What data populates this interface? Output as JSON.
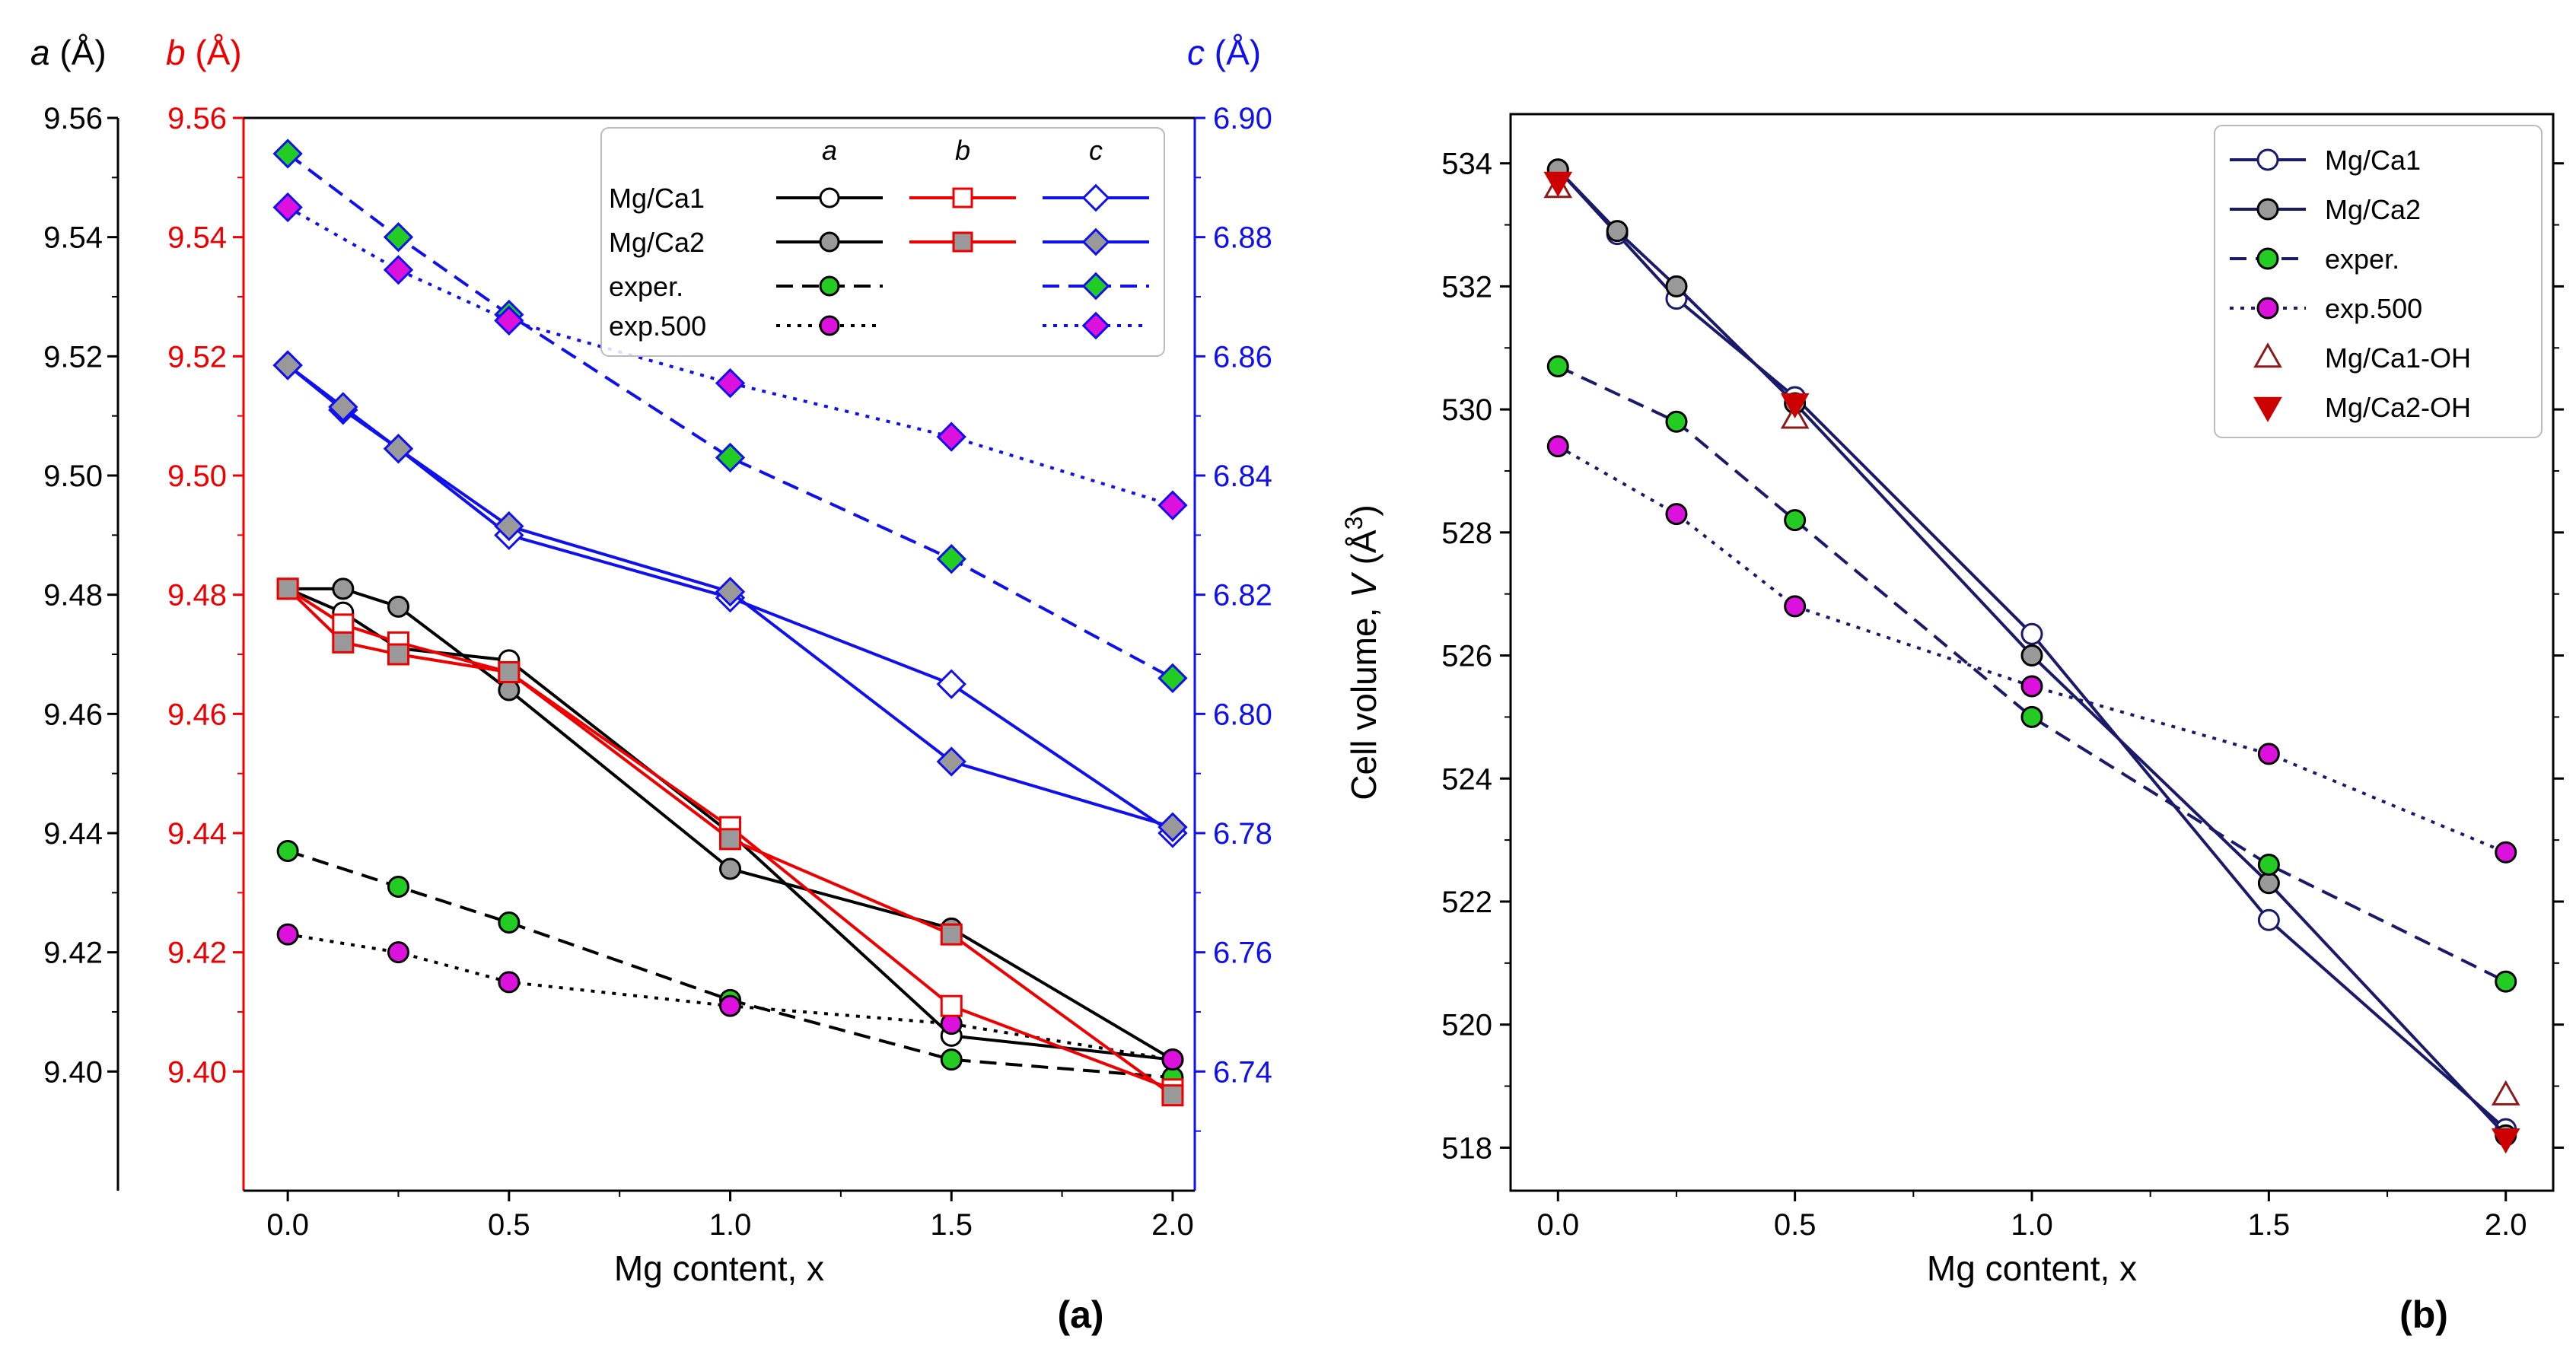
{
  "colors": {
    "a": "#000000",
    "b": "#ee0000",
    "c": "#1010ee",
    "v": "#1a1a6a",
    "green": "#22cc22",
    "magenta": "#dd11dd",
    "gray": "#999999",
    "red": "#cc0000",
    "darkred": "#8b1a1a"
  },
  "chart_data": [
    {
      "type": "line",
      "panel_label": "(a)",
      "xlabel": "Mg content, x",
      "xlim": [
        -0.1,
        2.05
      ],
      "xticks": [
        "0.0",
        "0.5",
        "1.0",
        "1.5",
        "2.0"
      ],
      "axis_titles": {
        "a": {
          "sym": "a",
          "unit": "(Å)"
        },
        "b": {
          "sym": "b",
          "unit": "(Å)"
        },
        "c": {
          "sym": "c",
          "unit": "(Å)"
        }
      },
      "left_axis": {
        "ylim": [
          9.38,
          9.56
        ],
        "ticks": [
          "9.40",
          "9.42",
          "9.44",
          "9.46",
          "9.48",
          "9.50",
          "9.52",
          "9.54",
          "9.56"
        ]
      },
      "right_axis": {
        "ylim": [
          6.72,
          6.9
        ],
        "ticks": [
          "6.74",
          "6.76",
          "6.78",
          "6.80",
          "6.82",
          "6.84",
          "6.86",
          "6.88",
          "6.90"
        ]
      },
      "legend": {
        "placement": "top-right",
        "col_headers": [
          "a",
          "b",
          "c"
        ],
        "rows": [
          "Mg/Ca1",
          "Mg/Ca2",
          "exper.",
          "exp.500"
        ]
      },
      "series": [
        {
          "name": "Mg/Ca1 a",
          "axis": "left",
          "color": "a",
          "dash": "solid",
          "marker": "circle",
          "fill": "#ffffff",
          "x": [
            0,
            0.125,
            0.25,
            0.5,
            1.0,
            1.5,
            2.0
          ],
          "y": [
            9.481,
            9.477,
            9.471,
            9.469,
            9.44,
            9.406,
            9.402
          ]
        },
        {
          "name": "Mg/Ca2 a",
          "axis": "left",
          "color": "a",
          "dash": "solid",
          "marker": "circle",
          "fill": "gray",
          "x": [
            0,
            0.125,
            0.25,
            0.5,
            1.0,
            1.5,
            2.0
          ],
          "y": [
            9.481,
            9.481,
            9.478,
            9.464,
            9.434,
            9.424,
            9.402
          ]
        },
        {
          "name": "exper. a",
          "axis": "left",
          "color": "a",
          "dash": "dashed",
          "marker": "circle",
          "fill": "green",
          "x": [
            0,
            0.25,
            0.5,
            1.0,
            1.5,
            2.0
          ],
          "y": [
            9.437,
            9.431,
            9.425,
            9.412,
            9.402,
            9.399
          ]
        },
        {
          "name": "exp.500 a",
          "axis": "left",
          "color": "a",
          "dash": "dotted",
          "marker": "circle",
          "fill": "magenta",
          "x": [
            0,
            0.25,
            0.5,
            1.0,
            1.5,
            2.0
          ],
          "y": [
            9.423,
            9.42,
            9.415,
            9.411,
            9.408,
            9.402
          ]
        },
        {
          "name": "Mg/Ca1 b",
          "axis": "left",
          "color": "b",
          "dash": "solid",
          "marker": "square",
          "fill": "#ffffff",
          "x": [
            0,
            0.125,
            0.25,
            0.5,
            1.0,
            1.5,
            2.0
          ],
          "y": [
            9.481,
            9.475,
            9.472,
            9.467,
            9.441,
            9.411,
            9.397
          ]
        },
        {
          "name": "Mg/Ca2 b",
          "axis": "left",
          "color": "b",
          "dash": "solid",
          "marker": "square",
          "fill": "gray",
          "x": [
            0,
            0.125,
            0.25,
            0.5,
            1.0,
            1.5,
            2.0
          ],
          "y": [
            9.481,
            9.472,
            9.47,
            9.467,
            9.439,
            9.423,
            9.396
          ]
        },
        {
          "name": "Mg/Ca1 c",
          "axis": "right",
          "color": "c",
          "dash": "solid",
          "marker": "diamond",
          "fill": "#ffffff",
          "x": [
            0,
            0.125,
            0.25,
            0.5,
            1.0,
            1.5,
            2.0
          ],
          "y": [
            6.8585,
            6.851,
            6.8445,
            6.83,
            6.8195,
            6.805,
            6.78
          ]
        },
        {
          "name": "Mg/Ca2 c",
          "axis": "right",
          "color": "c",
          "dash": "solid",
          "marker": "diamond",
          "fill": "gray",
          "x": [
            0,
            0.125,
            0.25,
            0.5,
            1.0,
            1.5,
            2.0
          ],
          "y": [
            6.8585,
            6.8515,
            6.8445,
            6.8315,
            6.8205,
            6.792,
            6.781
          ]
        },
        {
          "name": "exper. c",
          "axis": "right",
          "color": "c",
          "dash": "dashed",
          "marker": "diamond",
          "fill": "green",
          "x": [
            0,
            0.25,
            0.5,
            1.0,
            1.5,
            2.0
          ],
          "y": [
            6.894,
            6.88,
            6.867,
            6.843,
            6.826,
            6.806
          ]
        },
        {
          "name": "exp.500 c",
          "axis": "right",
          "color": "c",
          "dash": "dotted",
          "marker": "diamond",
          "fill": "magenta",
          "x": [
            0,
            0.25,
            0.5,
            1.0,
            1.5,
            2.0
          ],
          "y": [
            6.885,
            6.8745,
            6.866,
            6.8555,
            6.8465,
            6.835
          ]
        }
      ]
    },
    {
      "type": "line",
      "panel_label": "(b)",
      "xlabel": "Mg content, x",
      "ylabel": {
        "text": "Cell volume, ",
        "sym": "V",
        "unit_open": " (Å",
        "exp": "3",
        "unit_close": ")"
      },
      "xlim": [
        -0.1,
        2.1
      ],
      "xticks": [
        "0.0",
        "0.5",
        "1.0",
        "1.5",
        "2.0"
      ],
      "ylim": [
        517.3,
        534.8
      ],
      "yticks": [
        "518",
        "520",
        "522",
        "524",
        "526",
        "528",
        "530",
        "532",
        "534"
      ],
      "legend": {
        "placement": "top-right"
      },
      "series": [
        {
          "name": "Mg/Ca1",
          "color": "v",
          "dash": "solid",
          "marker": "circle",
          "fill": "#ffffff",
          "x": [
            0,
            0.125,
            0.25,
            0.5,
            1.0,
            1.5,
            2.0
          ],
          "y": [
            533.9,
            532.85,
            531.8,
            530.2,
            526.35,
            521.7,
            518.3
          ]
        },
        {
          "name": "Mg/Ca2",
          "color": "v",
          "dash": "solid",
          "marker": "circle",
          "fill": "gray",
          "x": [
            0,
            0.125,
            0.25,
            0.5,
            1.0,
            1.5,
            2.0
          ],
          "y": [
            533.9,
            532.9,
            532.0,
            530.1,
            526.0,
            522.3,
            518.2
          ]
        },
        {
          "name": "exper.",
          "color": "v",
          "dash": "dashed",
          "marker": "circle",
          "fill": "green",
          "x": [
            0,
            0.25,
            0.5,
            1.0,
            1.5,
            2.0
          ],
          "y": [
            530.7,
            529.8,
            528.2,
            525.0,
            522.6,
            520.7
          ]
        },
        {
          "name": "exp.500",
          "color": "v",
          "dash": "dotted",
          "marker": "circle",
          "fill": "magenta",
          "x": [
            0,
            0.25,
            0.5,
            1.0,
            1.5,
            2.0
          ],
          "y": [
            529.4,
            528.3,
            526.8,
            525.5,
            524.4,
            522.8
          ]
        },
        {
          "name": "Mg/Ca1-OH",
          "color": "darkred",
          "dash": "none",
          "marker": "triangle-up",
          "fill": "#ffffff",
          "x": [
            0,
            0.5,
            2.0
          ],
          "y": [
            533.6,
            529.85,
            518.85
          ]
        },
        {
          "name": "Mg/Ca2-OH",
          "color": "red",
          "dash": "none",
          "marker": "triangle-down",
          "fill": "red",
          "x": [
            0,
            0.5,
            2.0
          ],
          "y": [
            533.7,
            530.1,
            518.15
          ]
        }
      ]
    }
  ]
}
